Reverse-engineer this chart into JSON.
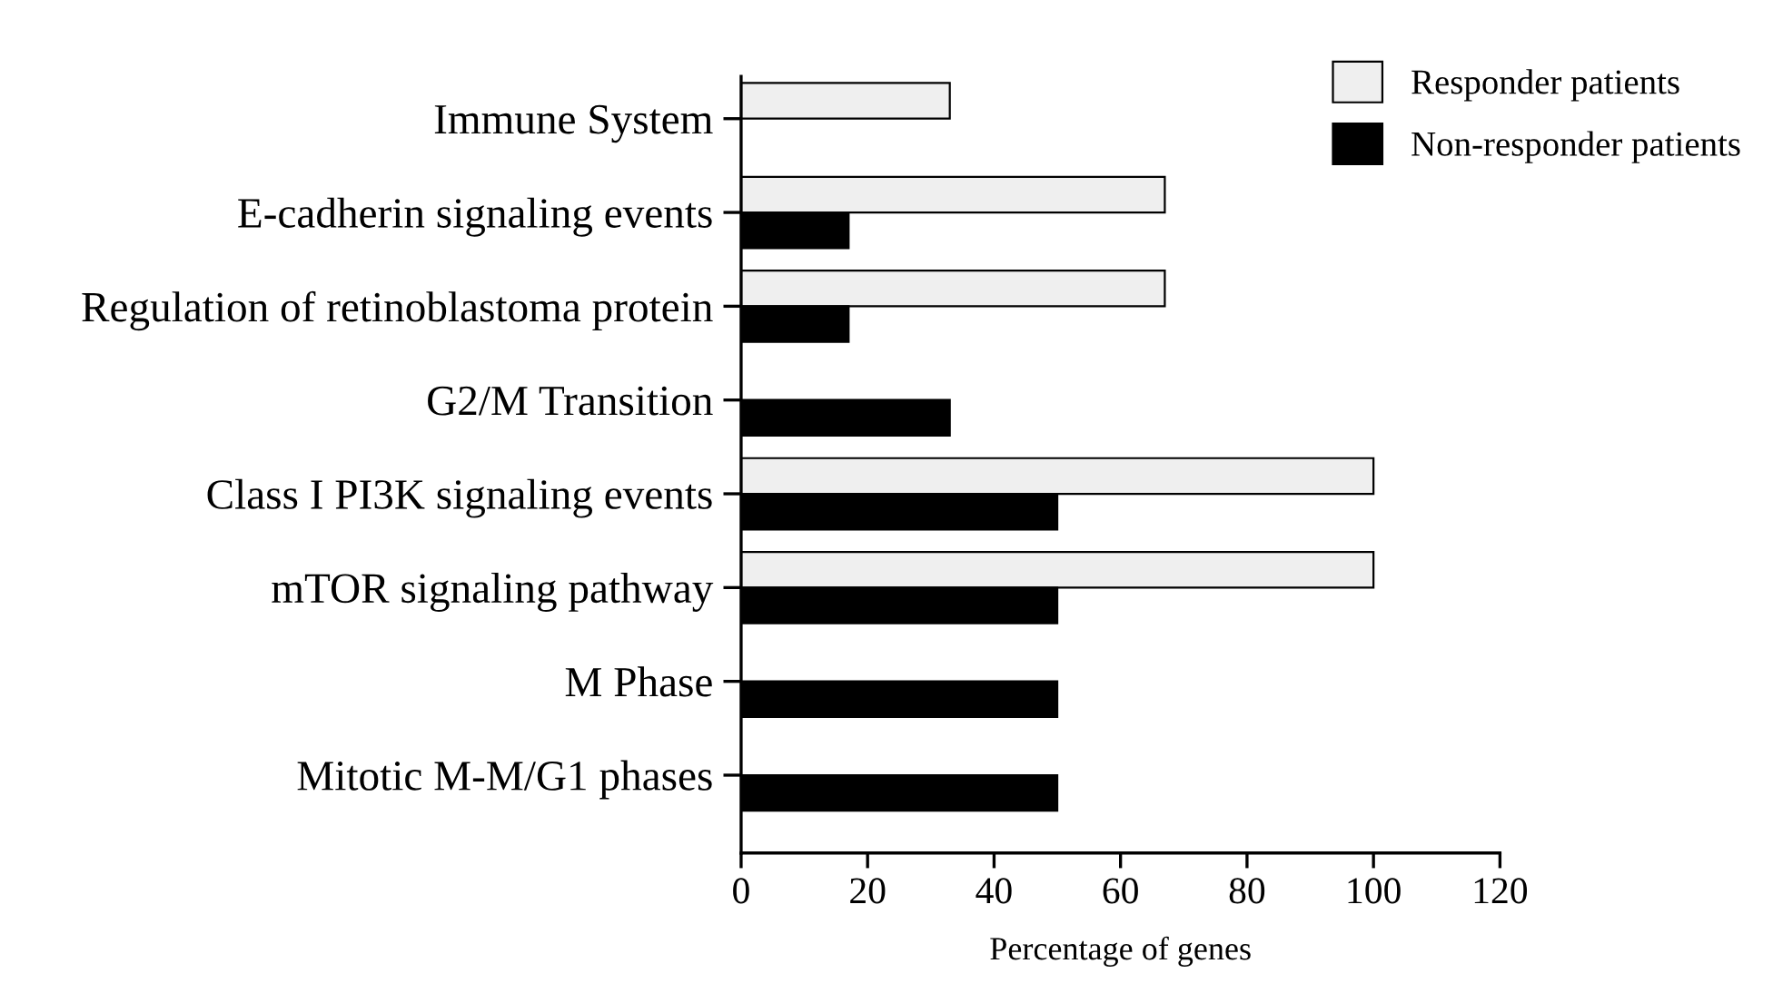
{
  "chart_data": {
    "type": "bar",
    "orientation": "horizontal",
    "xlabel": "Percentage of genes",
    "categories": [
      "Immune System",
      "E-cadherin signaling events",
      "Regulation of retinoblastoma protein",
      "G2/M Transition",
      "Class I PI3K signaling events",
      "mTOR signaling pathway",
      "M Phase",
      "Mitotic M-M/G1 phases"
    ],
    "series": [
      {
        "name": "Responder patients",
        "color": "#efefef",
        "values": [
          33,
          67,
          67,
          null,
          100,
          100,
          null,
          null
        ]
      },
      {
        "name": "Non-responder patients",
        "color": "#000000",
        "values": [
          null,
          17,
          17,
          33,
          50,
          50,
          50,
          50
        ]
      }
    ],
    "xlim": [
      0,
      120
    ],
    "xticks": [
      0,
      20,
      40,
      60,
      80,
      100,
      120
    ],
    "grid": false,
    "legend": "top right"
  }
}
